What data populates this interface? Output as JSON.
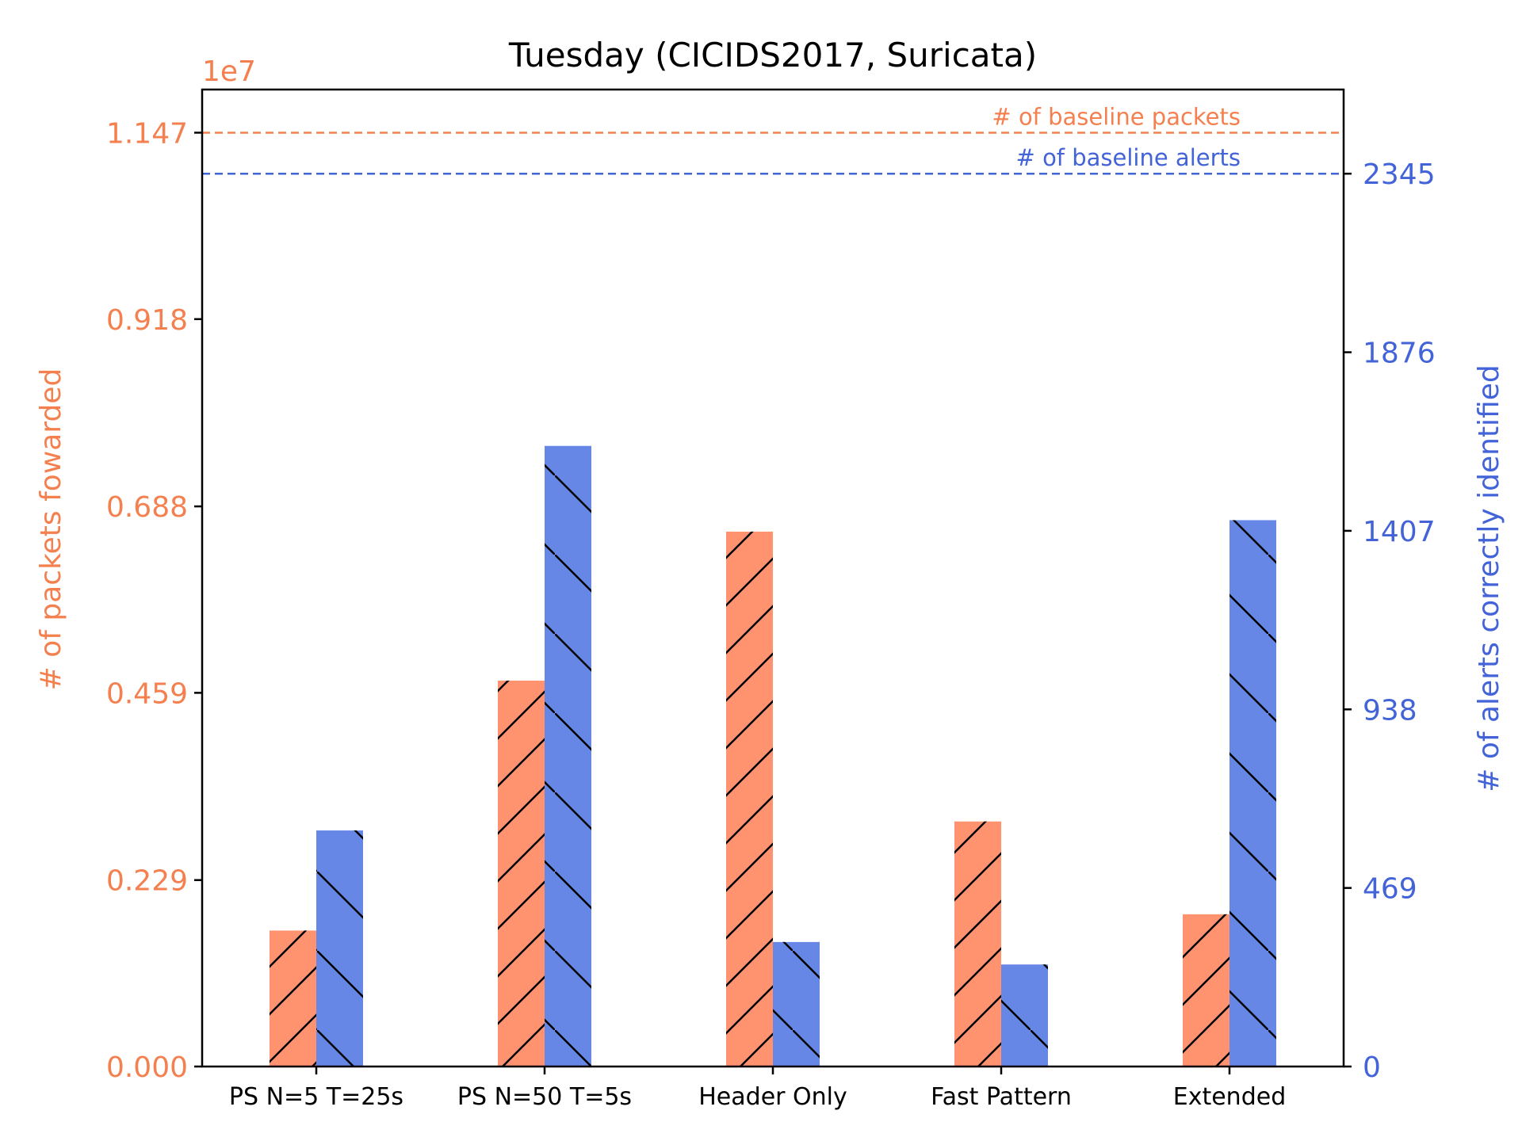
{
  "chart_data": {
    "type": "bar",
    "title": "Tuesday (CICIDS2017, Suricata)",
    "categories": [
      "PS N=5 T=25s",
      "PS N=50 T=5s",
      "Header Only",
      "Fast Pattern",
      "Extended"
    ],
    "left_axis": {
      "label": "# of packets fowarded",
      "scale_label": "1e7",
      "ticks": [
        "0.000",
        "0.229",
        "0.459",
        "0.688",
        "0.918",
        "1.147"
      ],
      "ylim": [
        0,
        1.2
      ],
      "color": "#f4804f"
    },
    "right_axis": {
      "label": "# of alerts correctly identified",
      "ticks": [
        "0",
        "469",
        "938",
        "1407",
        "1876",
        "2345"
      ],
      "ylim": [
        0,
        2566
      ],
      "color": "#4363d8"
    },
    "series": [
      {
        "axis": "left",
        "color": "#ff9370",
        "hatch": "/",
        "values": [
          0.167,
          0.474,
          0.657,
          0.301,
          0.187
        ]
      },
      {
        "axis": "right",
        "color": "#6787e6",
        "hatch": "\\",
        "values": [
          620,
          1630,
          327,
          268,
          1435
        ]
      }
    ],
    "reference_lines": [
      {
        "axis": "left",
        "value": 1.147,
        "label": "# of baseline packets",
        "color": "#f4804f"
      },
      {
        "axis": "right",
        "value": 2345,
        "label": "# of baseline alerts",
        "color": "#4363d8"
      }
    ],
    "grid": false
  }
}
